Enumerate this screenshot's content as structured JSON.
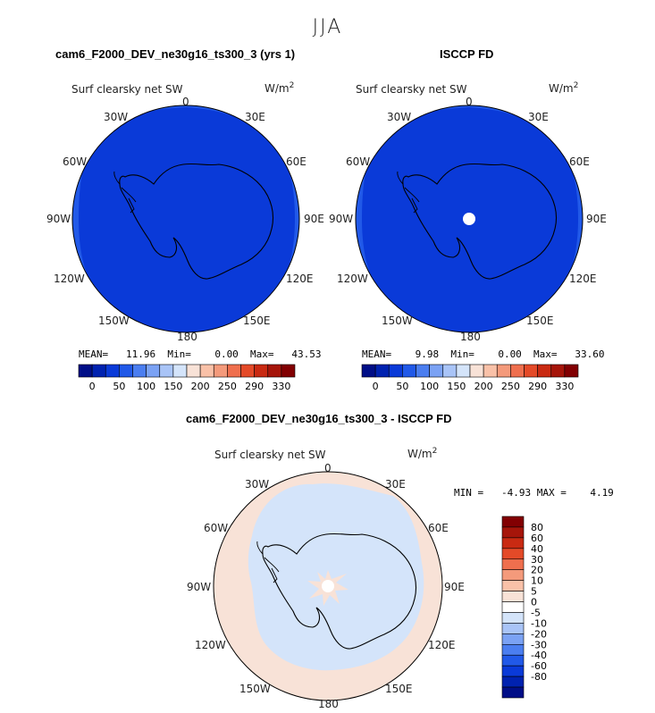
{
  "season": "JJA",
  "top_left": {
    "title": "cam6_F2000_DEV_ne30g16_ts300_3 (yrs 1)",
    "variable": "Surf clearsky net SW",
    "units": "W/m",
    "units_exp": "2",
    "stats": "MEAN=   11.96  Min=    0.00  Max=   43.53"
  },
  "top_right": {
    "title": "ISCCP FD",
    "variable": "Surf clearsky net SW",
    "units": "W/m",
    "units_exp": "2",
    "stats": "MEAN=    9.98  Min=    0.00  Max=   33.60"
  },
  "bottom": {
    "title": "cam6_F2000_DEV_ne30g16_ts300_3 - ISCCP FD",
    "variable": "Surf clearsky net SW",
    "units": "W/m",
    "units_exp": "2",
    "stats": "MIN =   -4.93 MAX =    4.19"
  },
  "polar_labels": {
    "lon_0": "0",
    "lon_30e": "30E",
    "lon_60e": "60E",
    "lon_90e": "90E",
    "lon_120e": "120E",
    "lon_150e": "150E",
    "lon_180": "180",
    "lon_150w": "150W",
    "lon_120w": "120W",
    "lon_90w": "90W",
    "lon_60w": "60W",
    "lon_30w": "30W"
  },
  "colorbar_abs": {
    "colors": [
      "#000e87",
      "#0022b0",
      "#0a3ad8",
      "#2159e8",
      "#4b7ef0",
      "#7ba2f4",
      "#a9c4f7",
      "#d4e4fa",
      "#f8e2d7",
      "#f9c1a8",
      "#f49a7b",
      "#ef6f4e",
      "#e44a28",
      "#c92a12",
      "#a6150a",
      "#820002"
    ],
    "ticks": [
      "0",
      "50",
      "100",
      "150",
      "200",
      "250",
      "290",
      "330"
    ]
  },
  "colorbar_diff": {
    "colors": [
      "#000e87",
      "#0022b0",
      "#0a3ad8",
      "#2159e8",
      "#4b7ef0",
      "#7ba2f4",
      "#a9c4f7",
      "#d4e4fa",
      "#ffffff",
      "#f8e2d7",
      "#f9c1a8",
      "#f49a7b",
      "#ef6f4e",
      "#e44a28",
      "#c92a12",
      "#a6150a",
      "#820002"
    ],
    "ticks": [
      "-80",
      "-60",
      "-40",
      "-30",
      "-20",
      "-10",
      "-5",
      "0",
      "5",
      "10",
      "20",
      "30",
      "40",
      "60",
      "80"
    ]
  },
  "fill_colors": {
    "dark_blue": "#0a3ad8",
    "mid_blue": "#2159e8",
    "light_blue": "#d4e4fa",
    "peach": "#f8e2d7"
  }
}
